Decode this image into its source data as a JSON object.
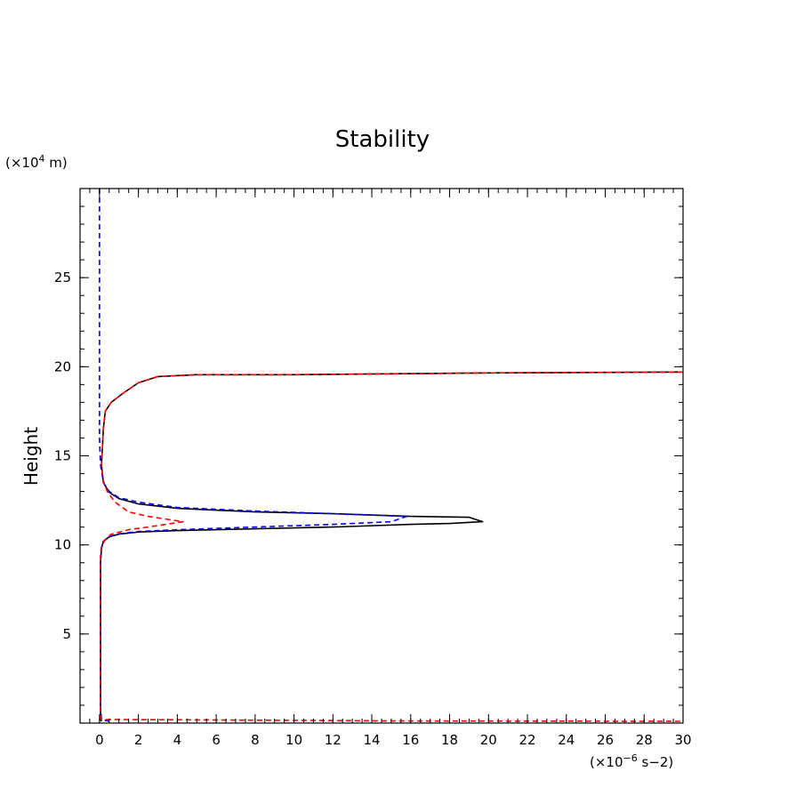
{
  "chart_data": {
    "type": "line",
    "title": "Stability",
    "ylabel": "Height",
    "xunit_prefix": "(×10",
    "xunit_exp": "−6",
    "xunit_suffix": " s−2)",
    "yunit_prefix": "(×10",
    "yunit_exp": "4",
    "yunit_suffix": " m)",
    "xlim": [
      -1,
      30
    ],
    "ylim": [
      0,
      30
    ],
    "x_ticks": [
      0,
      2,
      4,
      6,
      8,
      10,
      12,
      14,
      16,
      18,
      20,
      22,
      24,
      26,
      28,
      30
    ],
    "y_ticks": [
      5,
      10,
      15,
      20,
      25
    ],
    "x_minor_step": 0.5,
    "y_minor_step": 1,
    "grid": false,
    "legend": "none",
    "series": [
      {
        "color": "#000000",
        "dash": "solid",
        "points": [
          [
            0.1,
            0.1
          ],
          [
            0.05,
            0.2
          ],
          [
            0.05,
            0.5
          ],
          [
            0.05,
            3
          ],
          [
            0.05,
            6
          ],
          [
            0.05,
            9
          ],
          [
            0.1,
            9.8
          ],
          [
            0.2,
            10.2
          ],
          [
            0.5,
            10.45
          ],
          [
            1,
            10.6
          ],
          [
            2,
            10.72
          ],
          [
            4,
            10.8
          ],
          [
            8,
            10.9
          ],
          [
            12,
            11.0
          ],
          [
            16,
            11.15
          ],
          [
            18,
            11.2
          ],
          [
            19.7,
            11.3
          ],
          [
            19,
            11.55
          ],
          [
            16,
            11.6
          ],
          [
            12,
            11.75
          ],
          [
            8,
            11.85
          ],
          [
            4,
            12.05
          ],
          [
            2,
            12.3
          ],
          [
            1,
            12.6
          ],
          [
            0.5,
            12.95
          ],
          [
            0.2,
            13.5
          ],
          [
            0.1,
            14.5
          ],
          [
            0.15,
            15.5
          ],
          [
            0.2,
            16.5
          ],
          [
            0.3,
            17.5
          ],
          [
            0.6,
            18.0
          ],
          [
            1.2,
            18.5
          ],
          [
            2,
            19.1
          ],
          [
            3,
            19.45
          ],
          [
            5,
            19.55
          ],
          [
            10,
            19.55
          ],
          [
            20,
            19.65
          ],
          [
            30,
            19.7
          ]
        ]
      },
      {
        "color": "#0000ff",
        "dash": "dashed",
        "points": [
          [
            0,
            30
          ],
          [
            0,
            25
          ],
          [
            0,
            20
          ],
          [
            0,
            16
          ],
          [
            0.05,
            14.5
          ],
          [
            0.2,
            13.5
          ],
          [
            0.5,
            13.0
          ],
          [
            1,
            12.65
          ],
          [
            2,
            12.4
          ],
          [
            4,
            12.1
          ],
          [
            8,
            11.9
          ],
          [
            12,
            11.75
          ],
          [
            15.8,
            11.6
          ],
          [
            15,
            11.3
          ],
          [
            12,
            11.15
          ],
          [
            8,
            11.0
          ],
          [
            4,
            10.85
          ],
          [
            2,
            10.75
          ],
          [
            1,
            10.62
          ],
          [
            0.5,
            10.48
          ],
          [
            0.2,
            10.2
          ],
          [
            0.1,
            9.8
          ],
          [
            0.05,
            9
          ],
          [
            0.05,
            6
          ],
          [
            0.05,
            3
          ],
          [
            0.05,
            1
          ],
          [
            0.1,
            0.2
          ],
          [
            0.5,
            0.1
          ]
        ]
      },
      {
        "color": "#ff0000",
        "dash": "dashed",
        "points": [
          [
            30,
            19.7
          ],
          [
            20,
            19.65
          ],
          [
            10,
            19.55
          ],
          [
            5,
            19.55
          ],
          [
            3,
            19.45
          ],
          [
            2,
            19.1
          ],
          [
            1.2,
            18.5
          ],
          [
            0.6,
            18.0
          ],
          [
            0.3,
            17.5
          ],
          [
            0.2,
            16.5
          ],
          [
            0.15,
            15.5
          ],
          [
            0.1,
            14.5
          ],
          [
            0.2,
            13.6
          ],
          [
            0.4,
            13.0
          ],
          [
            0.8,
            12.4
          ],
          [
            1.5,
            11.85
          ],
          [
            2.5,
            11.6
          ],
          [
            4.3,
            11.3
          ],
          [
            2.5,
            11.0
          ],
          [
            1.5,
            10.85
          ],
          [
            0.6,
            10.6
          ],
          [
            0.3,
            10.3
          ],
          [
            0.1,
            9.9
          ],
          [
            0.05,
            9.5
          ],
          [
            0.05,
            6
          ],
          [
            0.05,
            3
          ],
          [
            0.05,
            0.5
          ],
          [
            0.1,
            0.2
          ],
          [
            5,
            0.18
          ],
          [
            15,
            0.12
          ],
          [
            30,
            0.1
          ]
        ]
      }
    ]
  }
}
